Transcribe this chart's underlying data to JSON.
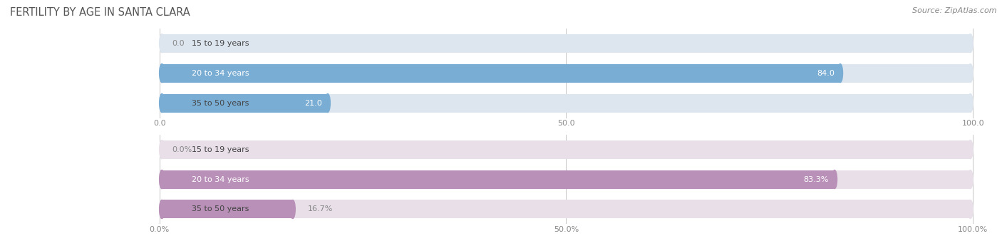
{
  "title": "Fertility by Age in Santa Clara",
  "source": "Source: ZipAtlas.com",
  "section1": {
    "categories": [
      "15 to 19 years",
      "20 to 34 years",
      "35 to 50 years"
    ],
    "values": [
      0.0,
      84.0,
      21.0
    ],
    "max_value": 100.0,
    "tick_labels": [
      "0.0",
      "50.0",
      "100.0"
    ],
    "bar_color": "#7aadd4",
    "bar_bg_color": "#dde5ef",
    "value_suffix": ""
  },
  "section2": {
    "categories": [
      "15 to 19 years",
      "20 to 34 years",
      "35 to 50 years"
    ],
    "values": [
      0.0,
      83.3,
      16.7
    ],
    "max_value": 100.0,
    "tick_labels": [
      "0.0%",
      "50.0%",
      "100.0%"
    ],
    "bar_color": "#b990b8",
    "bar_bg_color": "#e8dfe8",
    "value_suffix": "%"
  },
  "title_fontsize": 10.5,
  "cat_fontsize": 8.0,
  "val_fontsize": 8.0,
  "tick_fontsize": 8.0,
  "source_fontsize": 8.0,
  "bg_color": "#ffffff",
  "cat_label_color": "#444444",
  "grid_color": "#bbbbbb",
  "tick_color": "#888888"
}
